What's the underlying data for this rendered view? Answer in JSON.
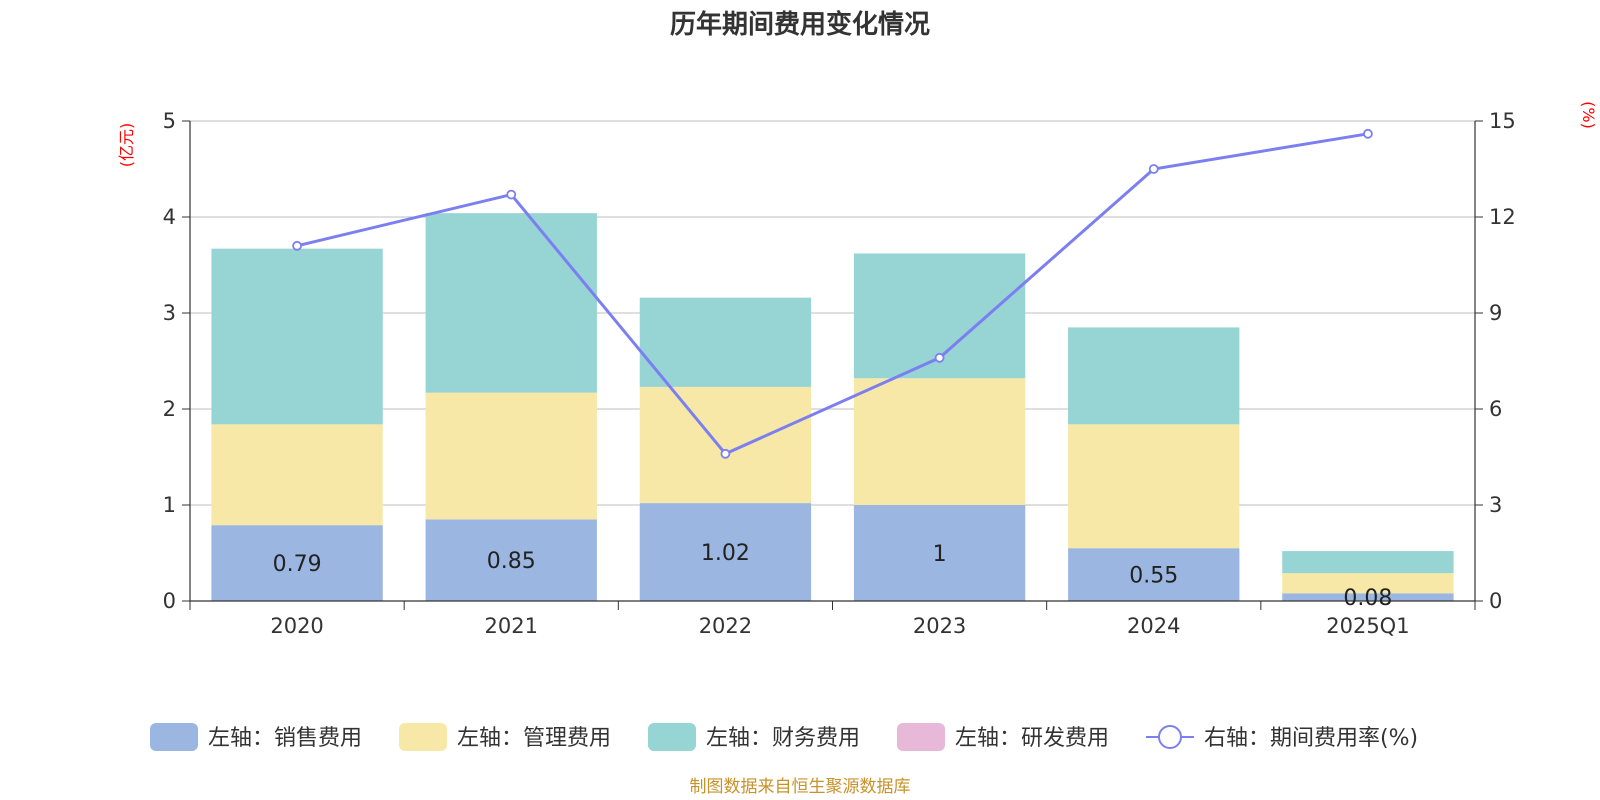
{
  "chart_data": {
    "type": "bar",
    "title": "历年期间费用变化情况",
    "categories": [
      "2020",
      "2021",
      "2022",
      "2023",
      "2024",
      "2025Q1"
    ],
    "left_axis": {
      "unit": "(亿元)",
      "ylim": [
        0,
        5
      ],
      "ticks": [
        "0",
        "1",
        "2",
        "3",
        "4",
        "5"
      ]
    },
    "right_axis": {
      "unit": "(%)",
      "ylim": [
        0,
        15
      ],
      "ticks": [
        "0",
        "3",
        "6",
        "9",
        "12",
        "15"
      ]
    },
    "series": [
      {
        "name": "左轴：销售费用",
        "kind": "stacked-bar",
        "color": "#9bb6e0",
        "values": [
          0.79,
          0.85,
          1.02,
          1.0,
          0.55,
          0.08
        ],
        "labels": [
          "0.79",
          "0.85",
          "1.02",
          "1",
          "0.55",
          "0.08"
        ]
      },
      {
        "name": "左轴：管理费用",
        "kind": "stacked-bar",
        "color": "#f7e8a8",
        "values": [
          1.05,
          1.32,
          1.21,
          1.32,
          1.29,
          0.21
        ]
      },
      {
        "name": "左轴：财务费用",
        "kind": "stacked-bar",
        "color": "#97d4d4",
        "values": [
          1.83,
          1.87,
          0.93,
          1.3,
          1.01,
          0.23
        ]
      },
      {
        "name": "左轴：研发费用",
        "kind": "stacked-bar",
        "color": "#e8b8d8",
        "values": [
          0,
          0,
          0,
          0,
          0,
          0
        ]
      },
      {
        "name": "右轴：期间费用率(%)",
        "kind": "line",
        "color": "#7b7ff0",
        "values": [
          11.1,
          12.7,
          4.6,
          7.6,
          13.5,
          14.6
        ]
      }
    ],
    "grid": true,
    "legend_position": "bottom",
    "source": "制图数据来自恒生聚源数据库"
  }
}
